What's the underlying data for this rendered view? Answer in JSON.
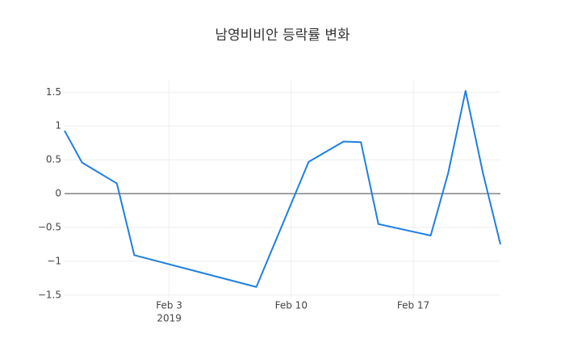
{
  "chart_data": {
    "type": "line",
    "title": "남영비비안 등락률 변화",
    "x": [
      "2019-01-28",
      "2019-01-29",
      "2019-01-31",
      "2019-02-01",
      "2019-02-08",
      "2019-02-11",
      "2019-02-13",
      "2019-02-14",
      "2019-02-15",
      "2019-02-18",
      "2019-02-19",
      "2019-02-20",
      "2019-02-21",
      "2019-02-22"
    ],
    "series": [
      {
        "color": "#1f7fe0",
        "values": [
          0.93,
          0.46,
          0.15,
          -0.91,
          -1.38,
          0.47,
          0.77,
          0.76,
          -0.45,
          -0.62,
          0.3,
          1.52,
          0.3,
          -0.75
        ]
      }
    ],
    "xlim": [
      "2019-01-28",
      "2019-02-22"
    ],
    "xticks": [
      {
        "value": "2019-02-03",
        "label": "Feb 3"
      },
      {
        "value": "2019-02-10",
        "label": "Feb 10"
      },
      {
        "value": "2019-02-17",
        "label": "Feb 17"
      }
    ],
    "xtick_year": "2019",
    "ylim": [
      -1.55,
      1.67
    ],
    "yticks": [
      {
        "value": -1.5,
        "label": "−1.5"
      },
      {
        "value": -1,
        "label": "−1"
      },
      {
        "value": -0.5,
        "label": "−0.5"
      },
      0,
      0.5,
      1,
      1.5
    ],
    "grid": true,
    "zeroline": true
  }
}
